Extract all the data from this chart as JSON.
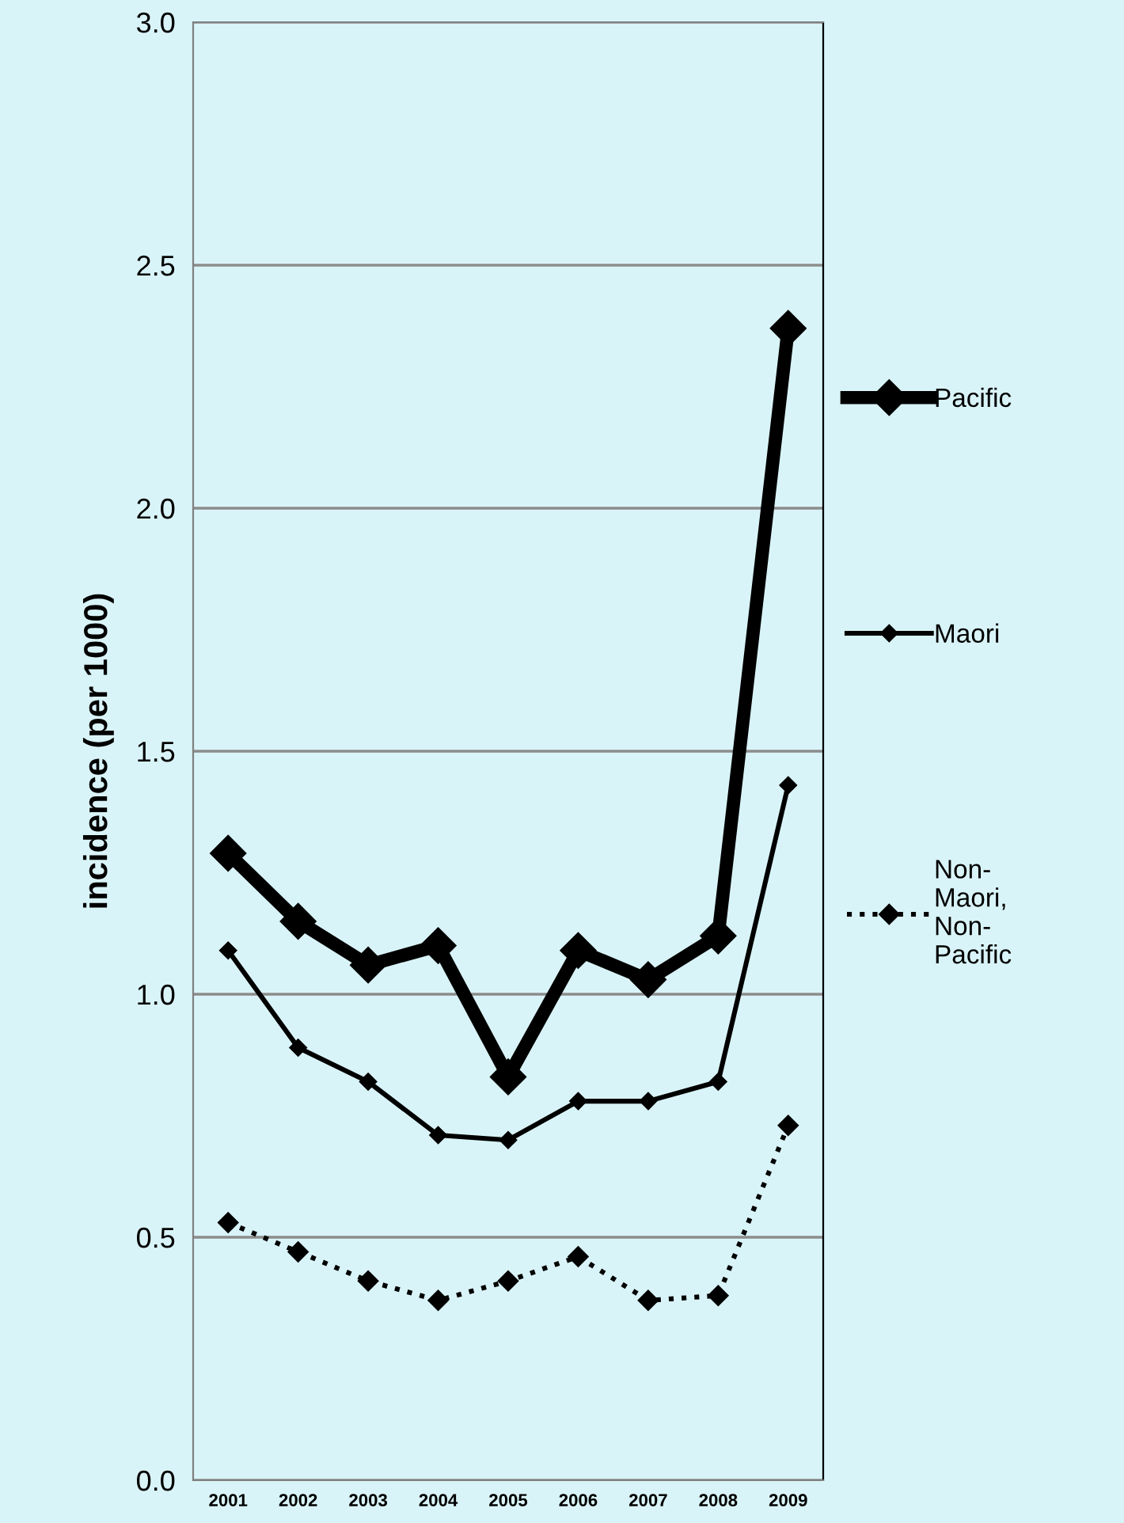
{
  "chart_data": {
    "type": "line",
    "ylabel": "incidence (per 1000)",
    "categories": [
      "2001",
      "2002",
      "2003",
      "2004",
      "2005",
      "2006",
      "2007",
      "2008",
      "2009"
    ],
    "series": [
      {
        "name": "Pacific",
        "color": "#000000",
        "line_style": "solid",
        "values": [
          1.29,
          1.15,
          1.06,
          1.1,
          0.83,
          1.09,
          1.03,
          1.12,
          2.37
        ]
      },
      {
        "name": "Maori",
        "color": "#000000",
        "line_style": "solid",
        "values": [
          1.09,
          0.89,
          0.82,
          0.71,
          0.7,
          0.78,
          0.78,
          0.82,
          1.43
        ]
      },
      {
        "name": "Non-Maori, Non-Pacific",
        "color": "#000000",
        "line_style": "dotted",
        "values": [
          0.53,
          0.47,
          0.41,
          0.37,
          0.41,
          0.46,
          0.37,
          0.38,
          0.73
        ]
      }
    ],
    "ylim": [
      0,
      3.0
    ],
    "yticks": [
      {
        "value": 0,
        "label": "0.0"
      },
      {
        "value": 0.5,
        "label": "0.5"
      },
      {
        "value": 1.0,
        "label": "1.0"
      },
      {
        "value": 1.5,
        "label": "1.5"
      },
      {
        "value": 2.0,
        "label": "2.0"
      },
      {
        "value": 2.5,
        "label": "2.5"
      },
      {
        "value": 3.0,
        "label": "3.0"
      }
    ],
    "grid": "y",
    "legend": "right",
    "marker": "diamond"
  }
}
